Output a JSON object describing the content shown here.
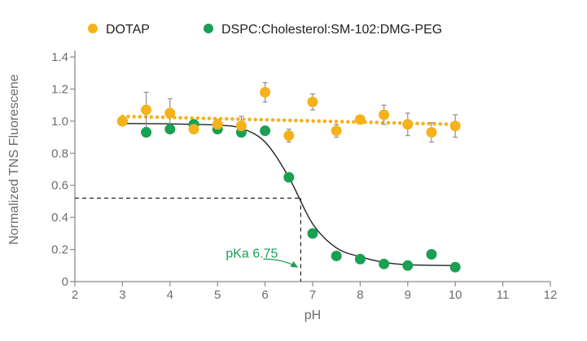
{
  "chart_data": {
    "type": "scatter",
    "xlabel": "pH",
    "ylabel": "Normalized TNS Fluorescene",
    "xlim": [
      2,
      12
    ],
    "ylim": [
      0,
      1.4
    ],
    "xticks": [
      2,
      3,
      4,
      5,
      6,
      7,
      8,
      9,
      10,
      11,
      12
    ],
    "yticks": [
      0,
      0.2,
      0.4,
      0.6,
      0.8,
      1.0,
      1.2,
      1.4
    ],
    "ytick_labels": [
      "0",
      "0.2",
      "0.4",
      "0.6",
      "0.8",
      "1.0",
      "1.2",
      "1.4"
    ],
    "grid": false,
    "legend_position": "top",
    "series": [
      {
        "name": "DOTAP",
        "color": "#f5b21b",
        "marker": "circle",
        "x": [
          3,
          3.5,
          4,
          4.5,
          5,
          5.5,
          6,
          6.5,
          7,
          7.5,
          8,
          8.5,
          9,
          9.5,
          10
        ],
        "y": [
          1.0,
          1.07,
          1.05,
          0.95,
          0.98,
          0.97,
          1.18,
          0.91,
          1.12,
          0.94,
          1.01,
          1.04,
          0.98,
          0.93,
          0.97
        ],
        "error": [
          0.0,
          0.11,
          0.09,
          0.02,
          0.03,
          0.06,
          0.06,
          0.04,
          0.05,
          0.04,
          0.02,
          0.06,
          0.07,
          0.06,
          0.07
        ],
        "fit": {
          "style": "dotted",
          "x": [
            3,
            10
          ],
          "y": [
            1.03,
            0.98
          ]
        }
      },
      {
        "name": "DSPC:Cholesterol:SM-102:DMG-PEG",
        "color": "#19a053",
        "marker": "circle",
        "x": [
          3,
          3.5,
          4,
          4.5,
          5,
          5.5,
          6,
          6.5,
          7,
          7.5,
          8,
          8.5,
          9,
          9.5,
          10
        ],
        "y": [
          1.0,
          0.93,
          0.95,
          0.98,
          0.95,
          0.93,
          0.94,
          0.65,
          0.3,
          0.16,
          0.14,
          0.11,
          0.1,
          0.17,
          0.09
        ],
        "fit": {
          "style": "solid",
          "color": "#222222",
          "x": [
            3,
            4,
            5,
            5.5,
            6,
            6.5,
            7,
            7.5,
            8,
            8.5,
            9,
            10
          ],
          "y": [
            0.985,
            0.983,
            0.975,
            0.955,
            0.87,
            0.65,
            0.36,
            0.21,
            0.155,
            0.12,
            0.105,
            0.1
          ]
        }
      }
    ],
    "annotations": [
      {
        "text": "pKa 6.75",
        "color": "#19a053",
        "x": 6.75,
        "y": 0.52,
        "guide_lines": "dashed",
        "guide_color": "#222222"
      }
    ]
  }
}
